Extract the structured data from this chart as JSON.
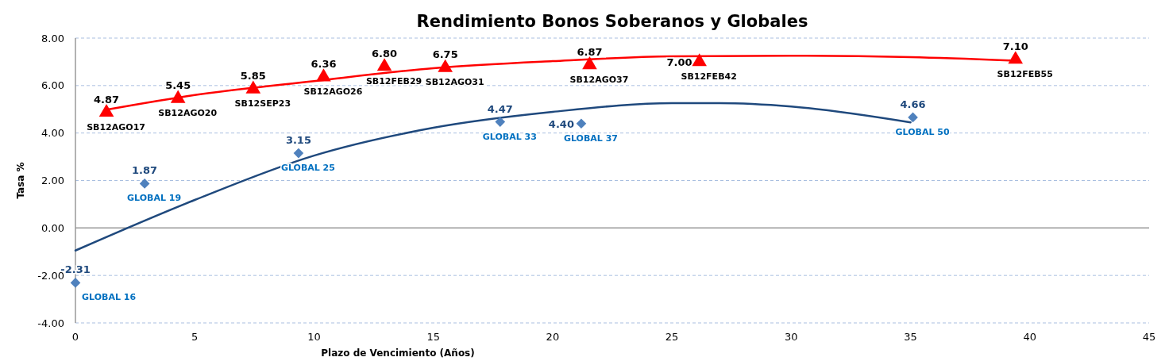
{
  "chart_data": {
    "type": "scatter",
    "title": "Rendimiento Bonos Soberanos y Globales",
    "xlabel": "Plazo de Vencimiento  (Años)",
    "ylabel": "Tasa %",
    "xlim": [
      0,
      45
    ],
    "xticks": [
      0,
      5,
      10,
      15,
      20,
      25,
      30,
      35,
      40,
      45
    ],
    "ylim": [
      -4,
      8
    ],
    "yticks": [
      {
        "value": -4,
        "label": "-4.00"
      },
      {
        "value": -2,
        "label": "-2.00"
      },
      {
        "value": 0,
        "label": "0.00"
      },
      {
        "value": 2,
        "label": "2.00"
      },
      {
        "value": 4,
        "label": "4.00"
      },
      {
        "value": 6,
        "label": "6.00"
      },
      {
        "value": 8,
        "label": "8.00"
      }
    ],
    "grid": "y",
    "series": [
      {
        "marker": "triangle",
        "color": "#ff0000",
        "x": [
          1.3,
          4.3,
          7.45,
          10.4,
          12.95,
          15.5,
          21.55,
          26.15,
          39.4
        ],
        "values": [
          4.87,
          5.45,
          5.85,
          6.36,
          6.8,
          6.75,
          6.87,
          7.0,
          7.1
        ],
        "value_labels": [
          "4.87",
          "5.45",
          "5.85",
          "6.36",
          "6.80",
          "6.75",
          "6.87",
          "7.00",
          "7.10"
        ]
      },
      {
        "marker": "diamond",
        "color": "#4f81bd",
        "x": [
          0,
          2.9,
          9.35,
          17.8,
          21.2,
          35.1
        ],
        "values": [
          -2.31,
          1.87,
          3.15,
          4.47,
          4.4,
          4.66
        ],
        "value_labels": [
          "-2.31",
          "1.87",
          "3.15",
          "4.47",
          "4.40",
          "4.66"
        ]
      },
      {
        "type": "line",
        "marker": "none",
        "color": "#ff0000",
        "x": [
          1.3,
          5,
          10,
          15,
          20,
          25,
          30,
          35,
          39.4
        ],
        "values": [
          4.98,
          5.6,
          6.19,
          6.73,
          7.03,
          7.23,
          7.26,
          7.2,
          7.05
        ]
      },
      {
        "type": "line",
        "marker": "none",
        "color": "#1f497d",
        "x": [
          0,
          5,
          10,
          15,
          20,
          25,
          27,
          30,
          35
        ],
        "values": [
          -0.95,
          1.18,
          3.05,
          4.22,
          4.89,
          5.26,
          5.26,
          5.12,
          4.45
        ]
      }
    ],
    "annotations": [
      {
        "text": "SB12AGO17",
        "x": 1.3,
        "y": 4.87
      },
      {
        "text": "SB12AGO20",
        "x": 4.3,
        "y": 5.45
      },
      {
        "text": "SB12SEP23",
        "x": 7.45,
        "y": 5.85
      },
      {
        "text": "SB12AGO26",
        "x": 10.4,
        "y": 6.36
      },
      {
        "text": "SB12FEB29",
        "x": 12.95,
        "y": 6.8
      },
      {
        "text": "SB12AGO31",
        "x": 15.5,
        "y": 6.75
      },
      {
        "text": "SB12AGO37",
        "x": 21.55,
        "y": 6.87
      },
      {
        "text": "SB12FEB42",
        "x": 26.15,
        "y": 7.0
      },
      {
        "text": "SB12FEB55",
        "x": 39.4,
        "y": 7.1
      },
      {
        "text": "GLOBAL 16",
        "x": 0,
        "y": -2.31
      },
      {
        "text": "GLOBAL 19",
        "x": 2.9,
        "y": 1.87
      },
      {
        "text": "GLOBAL 25",
        "x": 9.35,
        "y": 3.15
      },
      {
        "text": "GLOBAL 33",
        "x": 17.8,
        "y": 4.47
      },
      {
        "text": "GLOBAL 37",
        "x": 21.2,
        "y": 4.4
      },
      {
        "text": "GLOBAL 50",
        "x": 35.1,
        "y": 4.66
      }
    ]
  }
}
